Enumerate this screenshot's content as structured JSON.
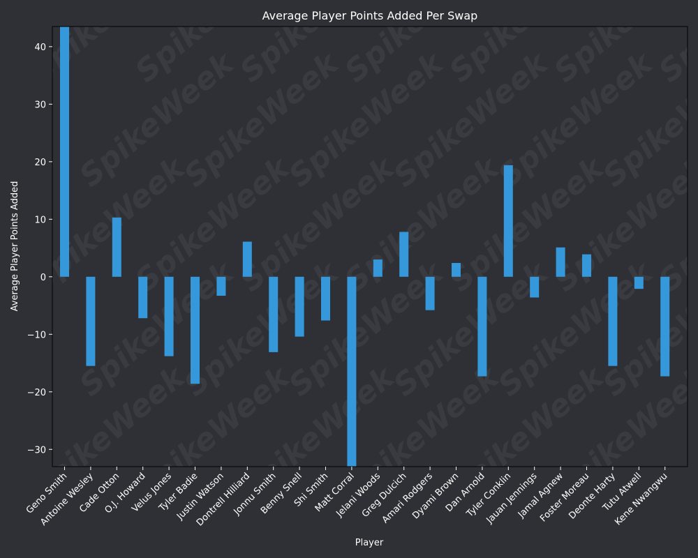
{
  "chart_data": {
    "type": "bar",
    "title": "Average Player Points Added Per Swap",
    "xlabel": "Player",
    "ylabel": "Average Player Points Added",
    "ylim": [
      -33,
      43.5
    ],
    "yticks": [
      -30,
      -20,
      -10,
      0,
      10,
      20,
      30,
      40
    ],
    "ytick_labels": [
      "−30",
      "−20",
      "−10",
      "0",
      "10",
      "20",
      "30",
      "40"
    ],
    "grid": false,
    "legend": "none",
    "categories": [
      "Geno Smith",
      "Antoine Wesley",
      "Cade Otton",
      "O.J. Howard",
      "Velus Jones",
      "Tyler Badie",
      "Justin Watson",
      "Dontrell Hilliard",
      "Jonnu Smith",
      "Benny Snell",
      "Shi Smith",
      "Matt Corral",
      "Jelani Woods",
      "Greg Dulcich",
      "Amari Rodgers",
      "Dyami Brown",
      "Dan Arnold",
      "Tyler Conklin",
      "Jauan Jennings",
      "Jamal Agnew",
      "Foster Moreau",
      "Deonte Harty",
      "Tutu Atwell",
      "Kene Nwangwu"
    ],
    "values": [
      43.5,
      -15.5,
      10.3,
      -7.2,
      -13.8,
      -18.6,
      -3.3,
      6.1,
      -13.1,
      -10.4,
      -7.6,
      -33.0,
      3.0,
      7.8,
      -5.8,
      2.4,
      -17.3,
      19.4,
      -3.6,
      5.1,
      3.9,
      -15.5,
      -2.1,
      -17.3
    ]
  },
  "colors": {
    "background": "#2f3035",
    "plot_background": "#2f3035",
    "bar": "#3498db",
    "text": "#ffffff",
    "axis": "#000000"
  },
  "watermark": {
    "text": "SpikeWeek"
  }
}
